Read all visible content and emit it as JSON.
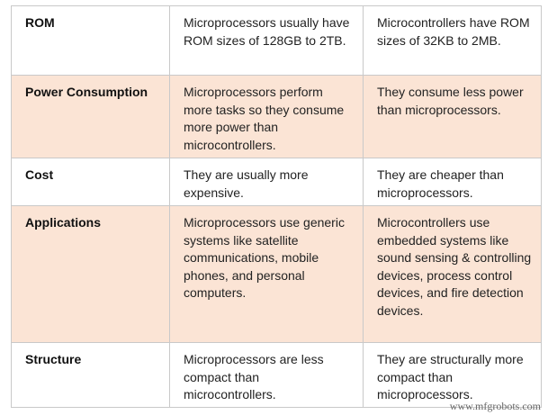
{
  "table": {
    "rows": [
      [
        "ROM",
        "Microprocessors usually have ROM sizes of 128GB to 2TB.",
        "Microcontrollers have ROM sizes of 32KB to 2MB."
      ],
      [
        "Power Consumption",
        "Microprocessors perform more tasks so they consume more power than microcontrollers.",
        "They consume less power than microprocessors."
      ],
      [
        "Cost",
        "They are usually more expensive.",
        "They are cheaper than microprocessors."
      ],
      [
        "Applications",
        "Microprocessors use generic systems like satellite communications, mobile phones, and personal computers.",
        "Microcontrollers use embedded systems like sound sensing & controlling devices, process control devices, and fire detection devices."
      ],
      [
        "Structure",
        "Microprocessors are less compact  than microcontrollers.",
        "They are structurally more compact than microprocessors."
      ]
    ]
  },
  "watermark": "www.mfgrobots.com"
}
